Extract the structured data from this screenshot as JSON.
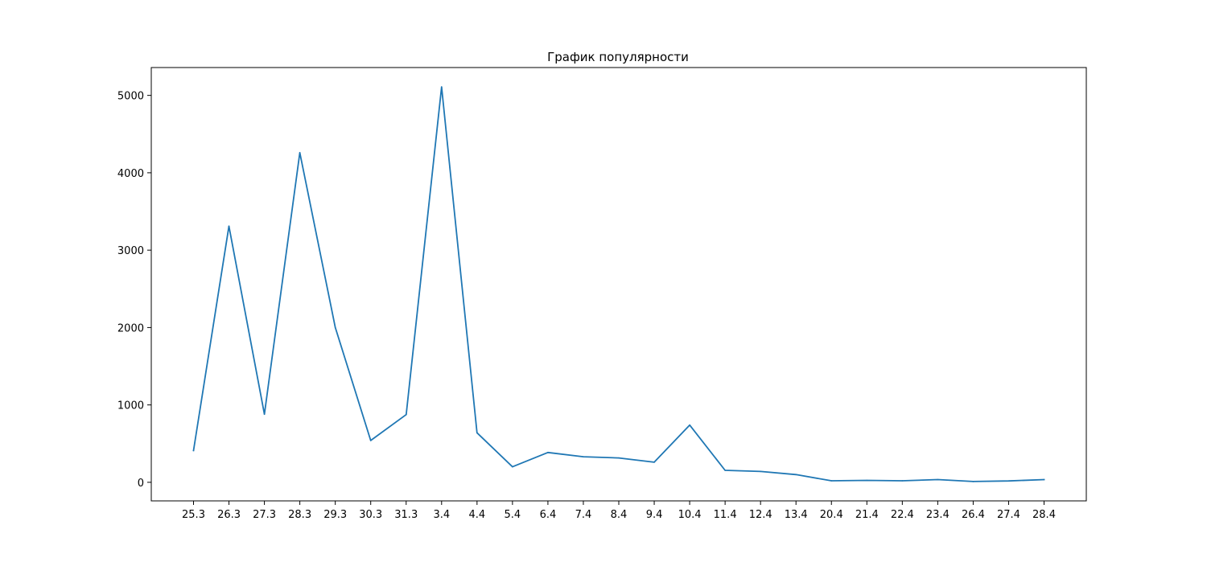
{
  "chart_data": {
    "type": "line",
    "title": "График популярности",
    "xlabel": "",
    "ylabel": "",
    "categories": [
      "25.3",
      "26.3",
      "27.3",
      "28.3",
      "29.3",
      "30.3",
      "31.3",
      "3.4",
      "4.4",
      "5.4",
      "6.4",
      "7.4",
      "8.4",
      "9.4",
      "10.4",
      "11.4",
      "12.4",
      "13.4",
      "20.4",
      "21.4",
      "22.4",
      "23.4",
      "26.4",
      "27.4",
      "28.4"
    ],
    "series": [
      {
        "color": "#1f77b4",
        "values": [
          410,
          3310,
          880,
          4260,
          2000,
          540,
          875,
          5110,
          640,
          200,
          385,
          330,
          315,
          260,
          740,
          155,
          140,
          100,
          20,
          25,
          20,
          35,
          10,
          18,
          35
        ]
      }
    ],
    "ylim": [
      -240,
      5360
    ],
    "yticks": [
      0,
      1000,
      2000,
      3000,
      4000,
      5000
    ],
    "grid": false,
    "legend": "none"
  }
}
